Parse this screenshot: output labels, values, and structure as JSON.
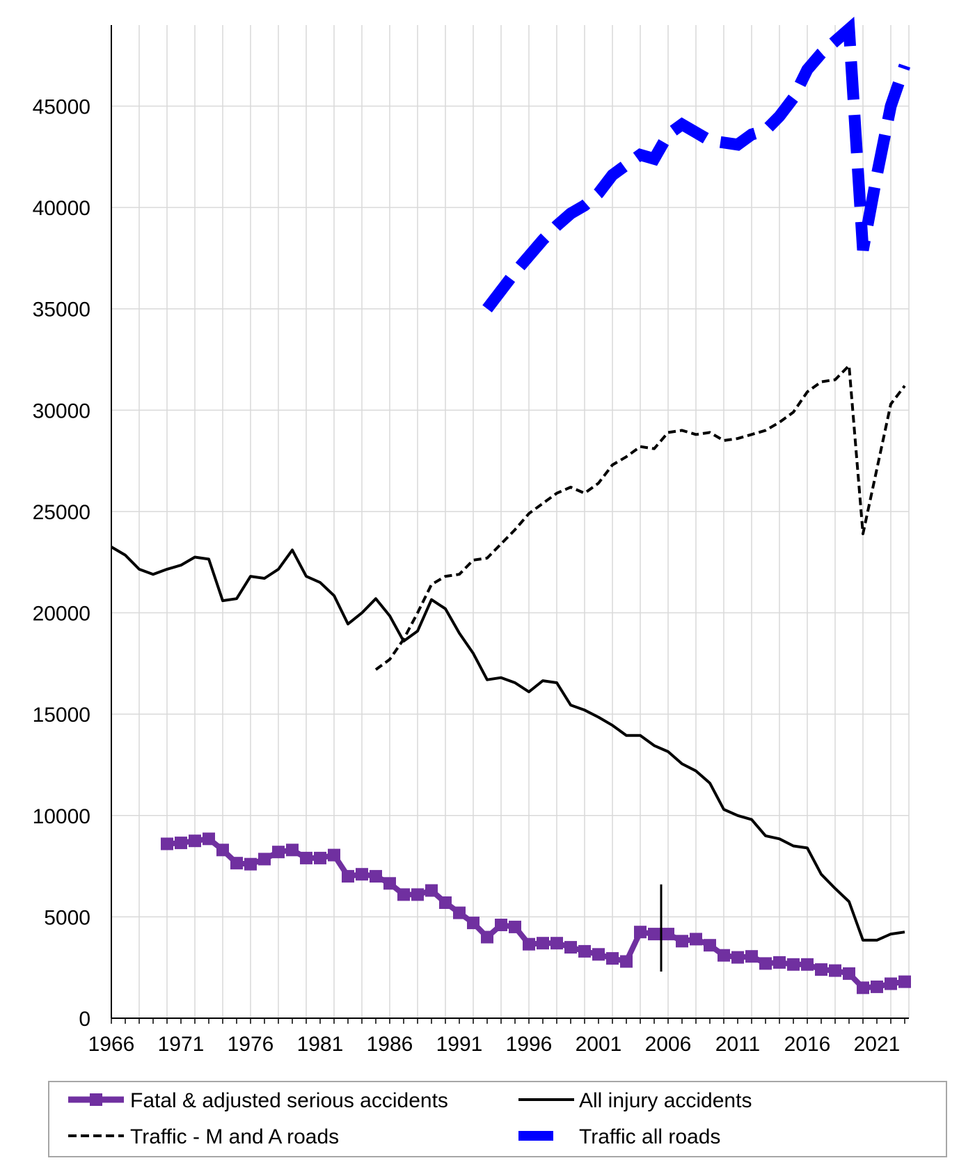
{
  "chart_data": {
    "type": "line",
    "title": "",
    "xlabel": "",
    "ylabel": "",
    "xlim": [
      1966,
      2023
    ],
    "ylim": [
      0,
      49000
    ],
    "y_ticks": [
      0,
      5000,
      10000,
      15000,
      20000,
      25000,
      30000,
      35000,
      40000,
      45000
    ],
    "x_ticks": [
      1966,
      1971,
      1976,
      1981,
      1986,
      1991,
      1996,
      2001,
      2006,
      2011,
      2016,
      2021
    ],
    "grid": true,
    "legend_position": "bottom",
    "series": [
      {
        "name": "Fatal & adjusted serious accidents",
        "color": "#7030A0",
        "style": "solid-square-markers",
        "x": [
          1970,
          1971,
          1972,
          1973,
          1974,
          1975,
          1976,
          1977,
          1978,
          1979,
          1980,
          1981,
          1982,
          1983,
          1984,
          1985,
          1986,
          1987,
          1988,
          1989,
          1990,
          1991,
          1992,
          1993,
          1994,
          1995,
          1996,
          1997,
          1998,
          1999,
          2000,
          2001,
          2002,
          2003,
          2004,
          2005,
          2006,
          2007,
          2008,
          2009,
          2010,
          2011,
          2012,
          2013,
          2014,
          2015,
          2016,
          2017,
          2018,
          2019,
          2020,
          2021,
          2022,
          2023
        ],
        "values": [
          8600,
          8650,
          8750,
          8850,
          8300,
          7650,
          7600,
          7850,
          8200,
          8300,
          7900,
          7900,
          8050,
          7000,
          7100,
          7000,
          6650,
          6100,
          6100,
          6300,
          5700,
          5200,
          4700,
          4000,
          4600,
          4500,
          3650,
          3700,
          3700,
          3500,
          3300,
          3150,
          2950,
          2800,
          4250,
          4150,
          4150,
          3800,
          3900,
          3600,
          3100,
          3000,
          3050,
          2700,
          2750,
          2650,
          2650,
          2400,
          2350,
          2200,
          1500,
          1550,
          1700,
          1800
        ]
      },
      {
        "name": "All injury accidents",
        "color": "#000000",
        "style": "solid",
        "x": [
          1966,
          1967,
          1968,
          1969,
          1970,
          1971,
          1972,
          1973,
          1974,
          1975,
          1976,
          1977,
          1978,
          1979,
          1980,
          1981,
          1982,
          1983,
          1984,
          1985,
          1986,
          1987,
          1988,
          1989,
          1990,
          1991,
          1992,
          1993,
          1994,
          1995,
          1996,
          1997,
          1998,
          1999,
          2000,
          2001,
          2002,
          2003,
          2004,
          2005,
          2006,
          2007,
          2008,
          2009,
          2010,
          2011,
          2012,
          2013,
          2014,
          2015,
          2016,
          2017,
          2018,
          2019,
          2020,
          2021,
          2022,
          2023
        ],
        "values": [
          23250,
          22850,
          22150,
          21900,
          22150,
          22350,
          22750,
          22650,
          20600,
          20700,
          21800,
          21700,
          22150,
          23100,
          21800,
          21500,
          20850,
          19450,
          20000,
          20700,
          19850,
          18600,
          19100,
          20650,
          20200,
          19000,
          18000,
          16700,
          16800,
          16550,
          16100,
          16650,
          16550,
          15450,
          15200,
          14850,
          14450,
          13950,
          13950,
          13450,
          13150,
          12550,
          12200,
          11600,
          10300,
          10000,
          9800,
          9000,
          8850,
          8500,
          8400,
          7100,
          6400,
          5750,
          3850,
          3850,
          4150,
          4250
        ]
      },
      {
        "name": "Traffic - M and A roads",
        "color": "#000000",
        "style": "dashed",
        "x": [
          1985,
          1986,
          1987,
          1988,
          1989,
          1990,
          1991,
          1992,
          1993,
          1994,
          1995,
          1996,
          1997,
          1998,
          1999,
          2000,
          2001,
          2002,
          2003,
          2004,
          2005,
          2006,
          2007,
          2008,
          2009,
          2010,
          2011,
          2012,
          2013,
          2014,
          2015,
          2016,
          2017,
          2018,
          2019,
          2020,
          2021,
          2022,
          2023
        ],
        "values": [
          17200,
          17700,
          18700,
          20000,
          21400,
          21800,
          21900,
          22600,
          22700,
          23400,
          24100,
          24900,
          25400,
          25900,
          26200,
          25900,
          26400,
          27300,
          27700,
          28200,
          28100,
          28900,
          29000,
          28800,
          28900,
          28500,
          28600,
          28800,
          29000,
          29400,
          29900,
          30900,
          31400,
          31500,
          32200,
          23900,
          27100,
          30300,
          31200
        ]
      },
      {
        "name": "Traffic all roads",
        "color": "#0000FF",
        "style": "thick-dashed",
        "x": [
          1993,
          1994,
          1995,
          1996,
          1997,
          1998,
          1999,
          2000,
          2001,
          2002,
          2003,
          2004,
          2005,
          2006,
          2007,
          2008,
          2009,
          2010,
          2011,
          2012,
          2013,
          2014,
          2015,
          2016,
          2017,
          2018,
          2019,
          2020,
          2021,
          2022,
          2023
        ],
        "values": [
          35000,
          35900,
          36800,
          37600,
          38400,
          39100,
          39700,
          40100,
          40700,
          41600,
          42100,
          42600,
          42400,
          43600,
          44100,
          43700,
          43300,
          43200,
          43100,
          43600,
          43800,
          44500,
          45400,
          46800,
          47600,
          48200,
          48800,
          37900,
          41600,
          45000,
          47000
        ]
      }
    ],
    "annotations": [
      {
        "type": "vertical-marker",
        "x": 2005.5,
        "y_from": 2300,
        "y_to": 6600,
        "description": "series break"
      }
    ]
  },
  "legend": {
    "items": [
      {
        "label": "Fatal & adjusted serious accidents"
      },
      {
        "label": "All injury accidents"
      },
      {
        "label": "Traffic - M and A roads"
      },
      {
        "label": "Traffic all roads"
      }
    ]
  }
}
